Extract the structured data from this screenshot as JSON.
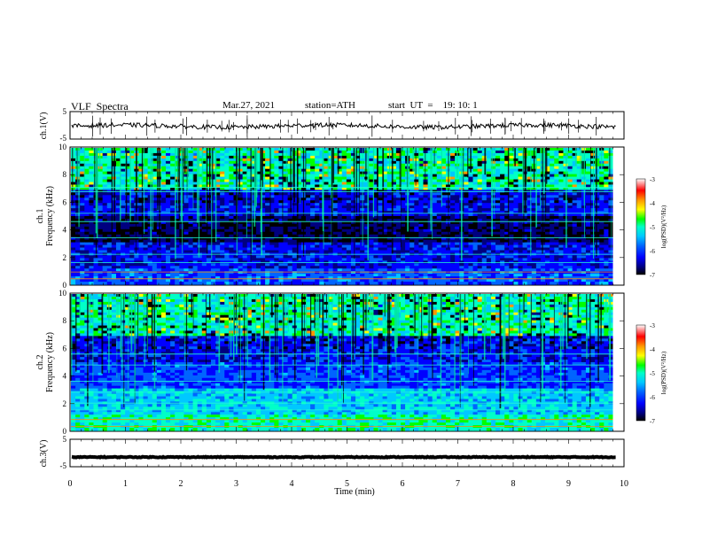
{
  "header": {
    "title": "VLF  Spectra",
    "date": "Mar.27, 2021",
    "station": "station=ATH",
    "start": "start  UT  =    19: 10: 1"
  },
  "colors": {
    "spectrogram_scale": [
      "#000000",
      "#000080",
      "#0000ff",
      "#0064ff",
      "#00c8ff",
      "#00ffc8",
      "#00ff00",
      "#c8ff00",
      "#ffff00",
      "#ff9600",
      "#ff0000",
      "#ffffff"
    ],
    "trace": "#000000"
  },
  "chart_data": [
    {
      "type": "line",
      "name": "ch.1",
      "ylabel": "ch.1(V)",
      "yticks": [
        "5",
        "-5"
      ],
      "ylim": [
        -5,
        5
      ],
      "xlim": [
        0,
        10
      ],
      "description_level": 0,
      "level_approx": -0.3,
      "trace_color": "#000000"
    },
    {
      "type": "heatmap",
      "name": "ch.1",
      "ylabel": "ch.1\nFrequency  (kHz)",
      "ylabel_lines": [
        "ch.1",
        "Frequency  (kHz)"
      ],
      "yticks": [
        "0",
        "2",
        "4",
        "6",
        "8",
        "10"
      ],
      "ylim": [
        0,
        10
      ],
      "xlim": [
        0,
        9.8
      ],
      "colorbar": {
        "label": "log(PSD)(V²/Hz)",
        "ticks": [
          "-3",
          "-4",
          "-5",
          "-6",
          "-7"
        ],
        "range": [
          -7,
          -3
        ]
      }
    },
    {
      "type": "heatmap",
      "name": "ch.2",
      "ylabel_lines": [
        "ch.2",
        "Frequency  (kHz)"
      ],
      "yticks": [
        "0",
        "2",
        "4",
        "6",
        "8",
        "10"
      ],
      "ylim": [
        0,
        10
      ],
      "xlim": [
        0,
        9.8
      ],
      "colorbar": {
        "label": "log(PSD)(V²/Hz)",
        "ticks": [
          "-3",
          "-4",
          "-5",
          "-6",
          "-7"
        ],
        "range": [
          -7,
          -3
        ]
      }
    },
    {
      "type": "line",
      "name": "ch.3",
      "ylabel": "ch.3(V)",
      "yticks": [
        "5",
        "-5"
      ],
      "ylim": [
        -5,
        5
      ],
      "xlim": [
        0,
        10
      ],
      "level_approx": -1.5,
      "trace_color": "#000000"
    }
  ],
  "xaxis": {
    "label": "Time  (min)",
    "ticks": [
      "0",
      "1",
      "2",
      "3",
      "4",
      "5",
      "6",
      "7",
      "8",
      "9",
      "10"
    ],
    "range": [
      0,
      10
    ]
  }
}
